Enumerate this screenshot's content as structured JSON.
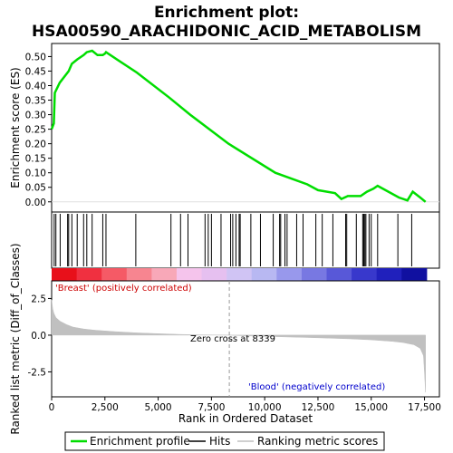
{
  "chart_data": {
    "type": "line",
    "title_line1": "Enrichment plot:",
    "title_line2": "HSA00590_ARACHIDONIC_ACID_METABOLISM",
    "top_panel": {
      "ylabel": "Enrichment score (ES)",
      "ylim": [
        -0.035,
        0.545
      ],
      "yticks": [
        "0.50",
        "0.45",
        "0.40",
        "0.35",
        "0.30",
        "0.25",
        "0.20",
        "0.15",
        "0.10",
        "0.05",
        "0.00"
      ],
      "ytick_values": [
        0.5,
        0.45,
        0.4,
        0.35,
        0.3,
        0.25,
        0.2,
        0.15,
        0.1,
        0.05,
        0.0
      ],
      "enrichment_profile": {
        "name": "Enrichment profile",
        "color": "#00dd00",
        "x": [
          0,
          100,
          150,
          380,
          800,
          950,
          1200,
          1500,
          1650,
          1900,
          2150,
          2400,
          2500,
          2550,
          4000,
          5500,
          6500,
          8300,
          10500,
          12000,
          12500,
          13300,
          13600,
          13900,
          14200,
          14500,
          14800,
          15100,
          15300,
          16300,
          16700,
          16950,
          17300,
          17550
        ],
        "y": [
          0.25,
          0.27,
          0.375,
          0.41,
          0.45,
          0.475,
          0.49,
          0.505,
          0.515,
          0.52,
          0.505,
          0.505,
          0.51,
          0.515,
          0.445,
          0.36,
          0.3,
          0.2,
          0.1,
          0.06,
          0.04,
          0.03,
          0.01,
          0.02,
          0.02,
          0.02,
          0.035,
          0.045,
          0.055,
          0.015,
          0.005,
          0.035,
          0.015,
          0.0
        ]
      }
    },
    "hits": {
      "name": "Hits",
      "x": [
        120,
        200,
        400,
        750,
        800,
        950,
        1200,
        1500,
        1650,
        1900,
        2400,
        2550,
        3950,
        5600,
        6050,
        6400,
        7200,
        7350,
        7500,
        7950,
        8400,
        8500,
        8650,
        8800,
        8850,
        9350,
        9800,
        10400,
        10700,
        10750,
        10950,
        11050,
        11500,
        11800,
        12400,
        12700,
        13200,
        13800,
        13850,
        14300,
        14600,
        14650,
        14700,
        14750,
        14900,
        15000,
        15300,
        16250,
        16900
      ],
      "color": "#000000"
    },
    "color_bar": {
      "colors": [
        "#e8101a",
        "#f03040",
        "#f55a66",
        "#f78590",
        "#f8a8b8",
        "#f5c4ec",
        "#e6c0f0",
        "#d0c4f4",
        "#b8b8f2",
        "#9898ec",
        "#7878e2",
        "#5858d8",
        "#3838cc",
        "#2020bc",
        "#1010a0"
      ]
    },
    "bottom_panel": {
      "ylabel": "Ranked list metric (Diff_of_Classes)",
      "xlabel": "Rank in Ordered Dataset",
      "ylim": [
        -4.2,
        3.7
      ],
      "yticks": [
        "2.5",
        "0.0",
        "-2.5"
      ],
      "ytick_values": [
        2.5,
        0.0,
        -2.5
      ],
      "metric_x": [
        0,
        50,
        100,
        200,
        400,
        700,
        1000,
        1500,
        2000,
        3000,
        4000,
        5000,
        6000,
        7000,
        8339,
        9000,
        10000,
        11000,
        12000,
        13000,
        14000,
        15000,
        16000,
        16500,
        17000,
        17300,
        17450,
        17500,
        17550
      ],
      "metric_y": [
        2.4,
        1.8,
        1.5,
        1.2,
        0.95,
        0.72,
        0.55,
        0.42,
        0.34,
        0.24,
        0.16,
        0.1,
        0.05,
        0.02,
        0.0,
        -0.04,
        -0.08,
        -0.12,
        -0.16,
        -0.2,
        -0.25,
        -0.32,
        -0.42,
        -0.5,
        -0.65,
        -0.9,
        -1.4,
        -2.5,
        -3.9
      ],
      "label_positive": "'Breast' (positively correlated)",
      "label_negative": "'Blood' (negatively correlated)",
      "zero_cross_label": "Zero cross at 8339",
      "zero_cross": 8339
    },
    "xlim": [
      0,
      18200
    ],
    "xticks": [
      "0",
      "2,500",
      "5,000",
      "7,500",
      "10,000",
      "12,500",
      "15,000",
      "17,500"
    ],
    "xtick_values": [
      0,
      2500,
      5000,
      7500,
      10000,
      12500,
      15000,
      17500
    ],
    "legend": [
      {
        "label": "Enrichment profile",
        "color": "#00dd00"
      },
      {
        "label": "Hits",
        "color": "#000000"
      },
      {
        "label": "Ranking metric scores",
        "color": "#c0c0c0"
      }
    ]
  }
}
